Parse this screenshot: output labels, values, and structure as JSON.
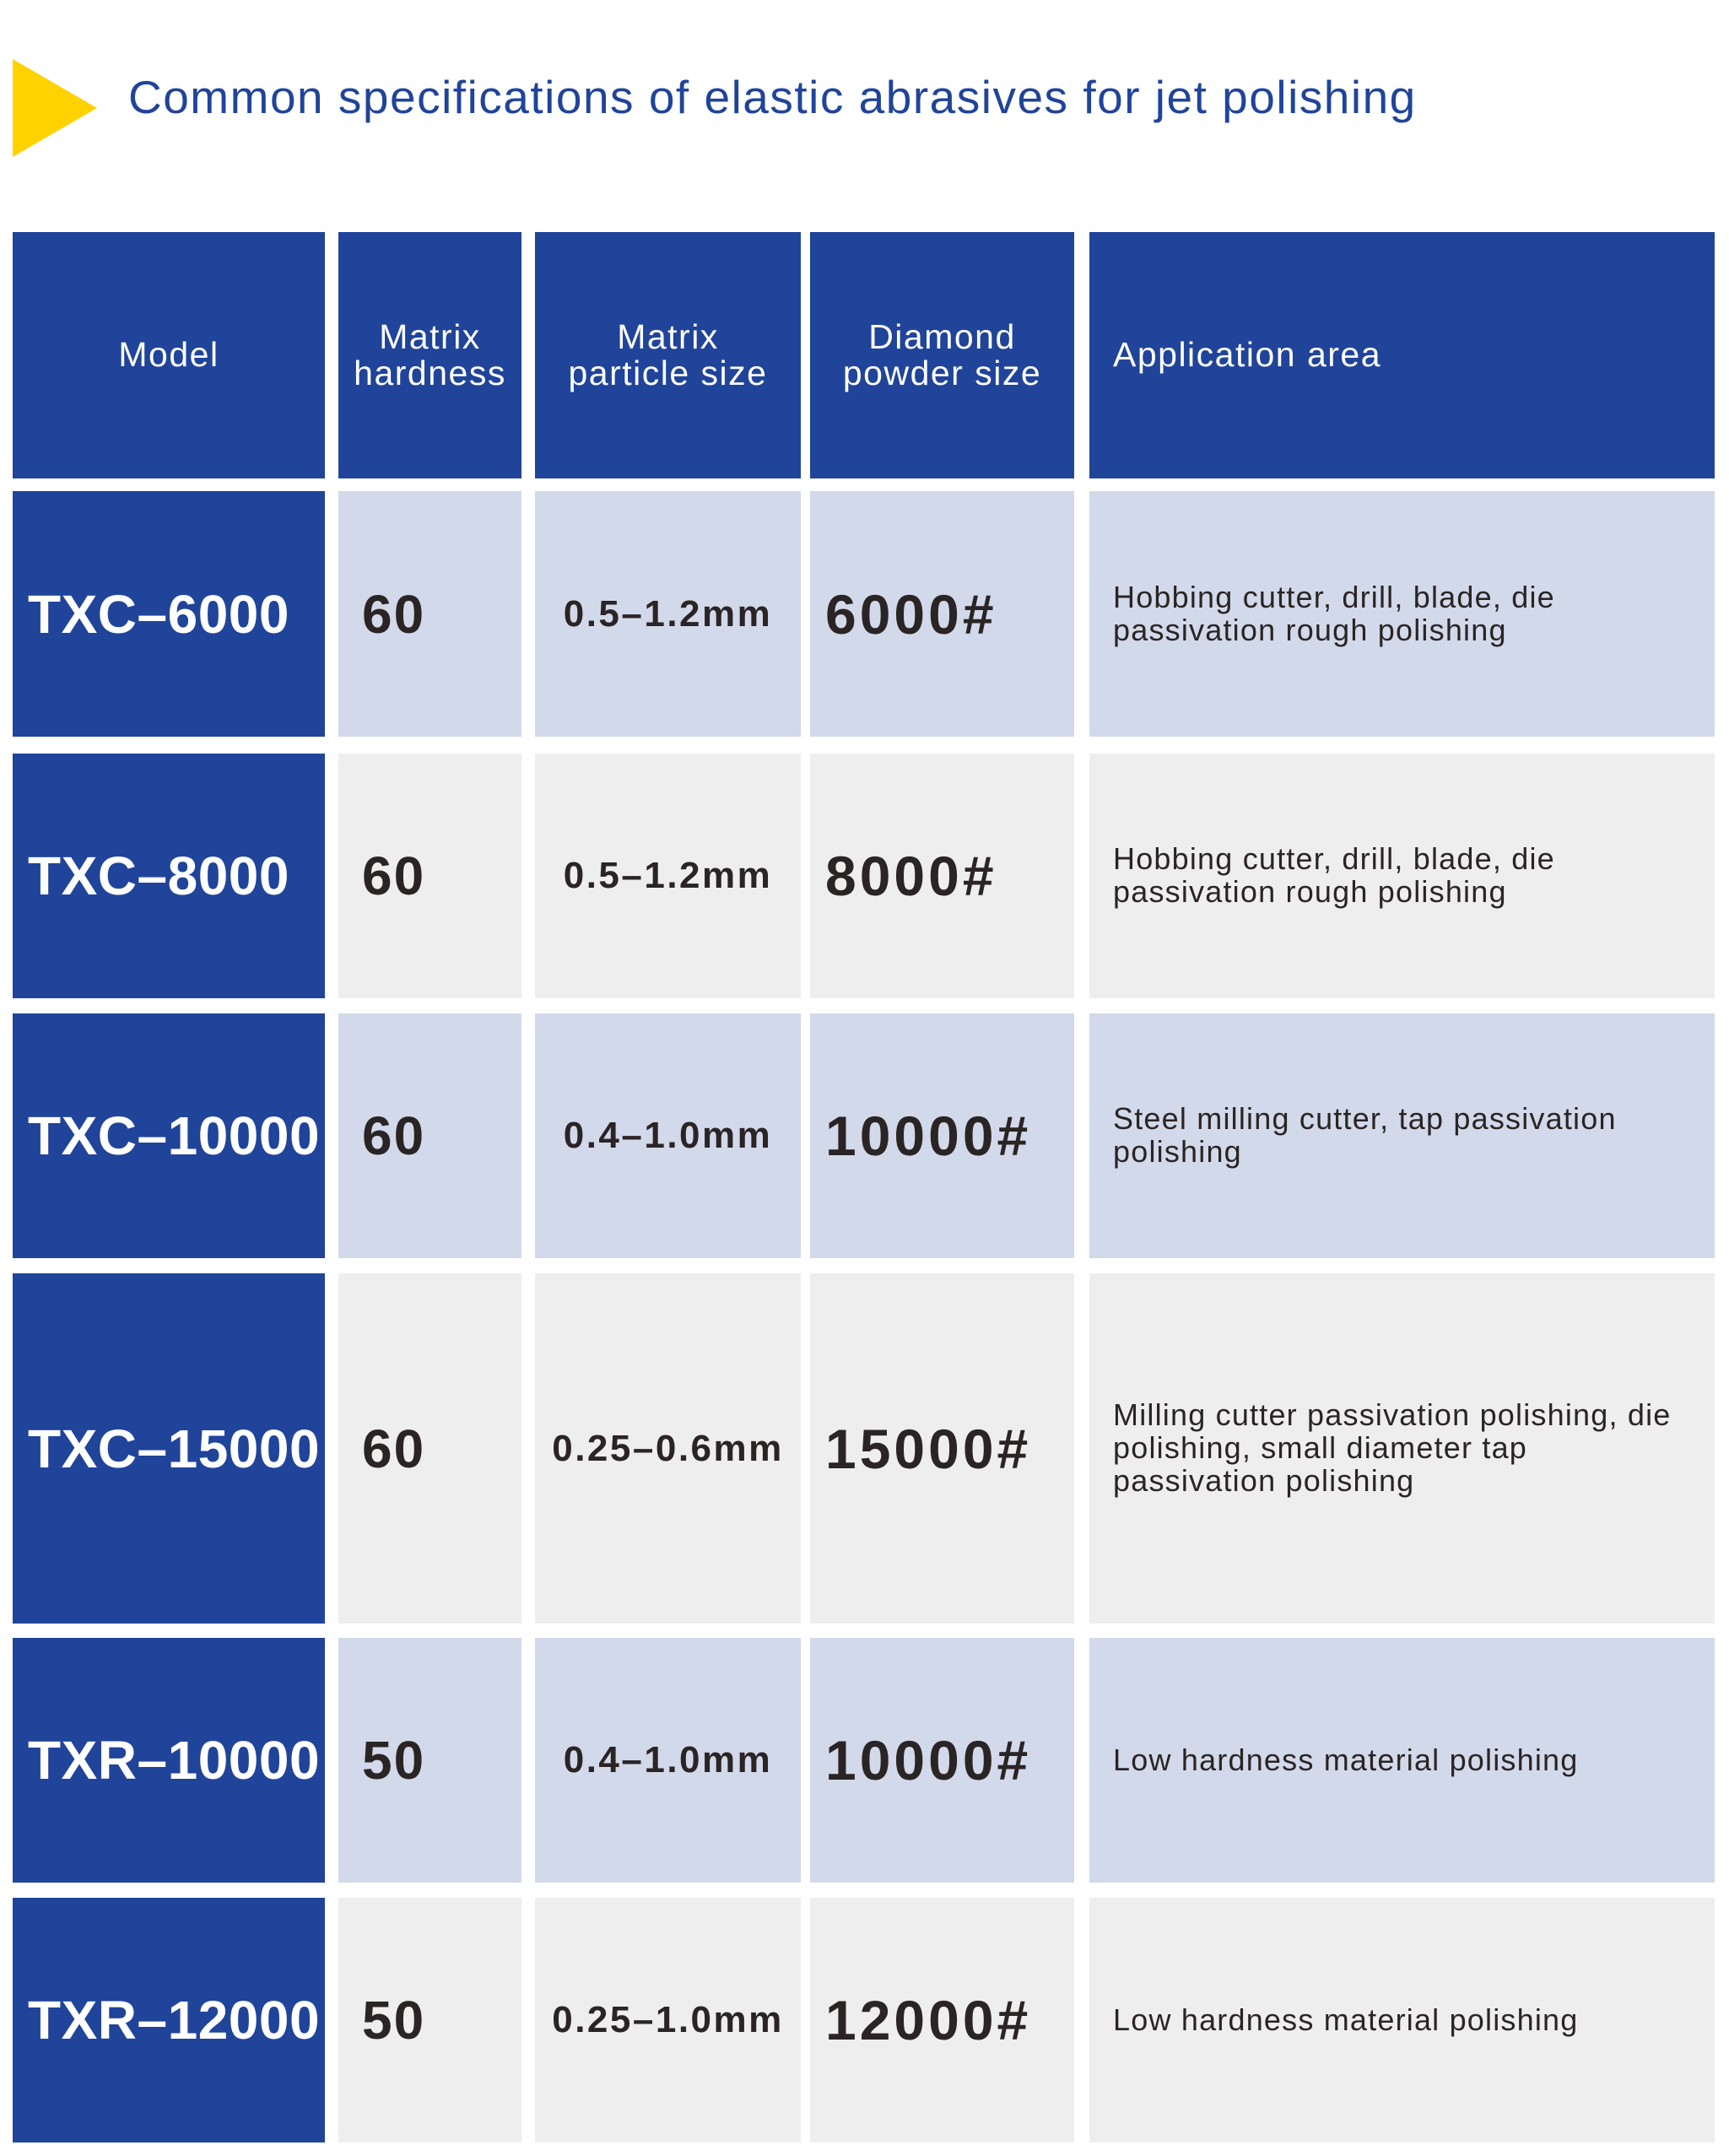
{
  "title": "Common specifications of elastic abrasives for jet polishing",
  "colors": {
    "header_blue": "#20449a",
    "row_blue": "#d2d9ea",
    "row_gray": "#eeeeee",
    "accent_yellow": "#ffd200",
    "text_dark": "#2b2424"
  },
  "icons": {
    "title_marker": "yellow-triangle-icon"
  },
  "table": {
    "headers": [
      "Model",
      "Matrix\nhardness",
      "Matrix\nparticle size",
      "Diamond\npowder size",
      "Application area"
    ],
    "rows": [
      {
        "model": "TXC–6000",
        "hardness": "60",
        "particle_size": "0.5–1.2mm",
        "powder_size": "6000#",
        "application": "Hobbing cutter, drill, blade, die passivation rough polishing"
      },
      {
        "model": "TXC–8000",
        "hardness": "60",
        "particle_size": "0.5–1.2mm",
        "powder_size": "8000#",
        "application": "Hobbing cutter, drill, blade, die passivation rough polishing"
      },
      {
        "model": "TXC–10000",
        "hardness": "60",
        "particle_size": "0.4–1.0mm",
        "powder_size": "10000#",
        "application": "Steel milling cutter, tap passivation polishing"
      },
      {
        "model": "TXC–15000",
        "hardness": "60",
        "particle_size": "0.25–0.6mm",
        "powder_size": "15000#",
        "application": "Milling cutter passivation polishing, die polishing, small diameter tap passivation polishing"
      },
      {
        "model": "TXR–10000",
        "hardness": "50",
        "particle_size": "0.4–1.0mm",
        "powder_size": "10000#",
        "application": "Low hardness material polishing"
      },
      {
        "model": "TXR–12000",
        "hardness": "50",
        "particle_size": "0.25–1.0mm",
        "powder_size": "12000#",
        "application": "Low hardness material polishing"
      }
    ]
  }
}
